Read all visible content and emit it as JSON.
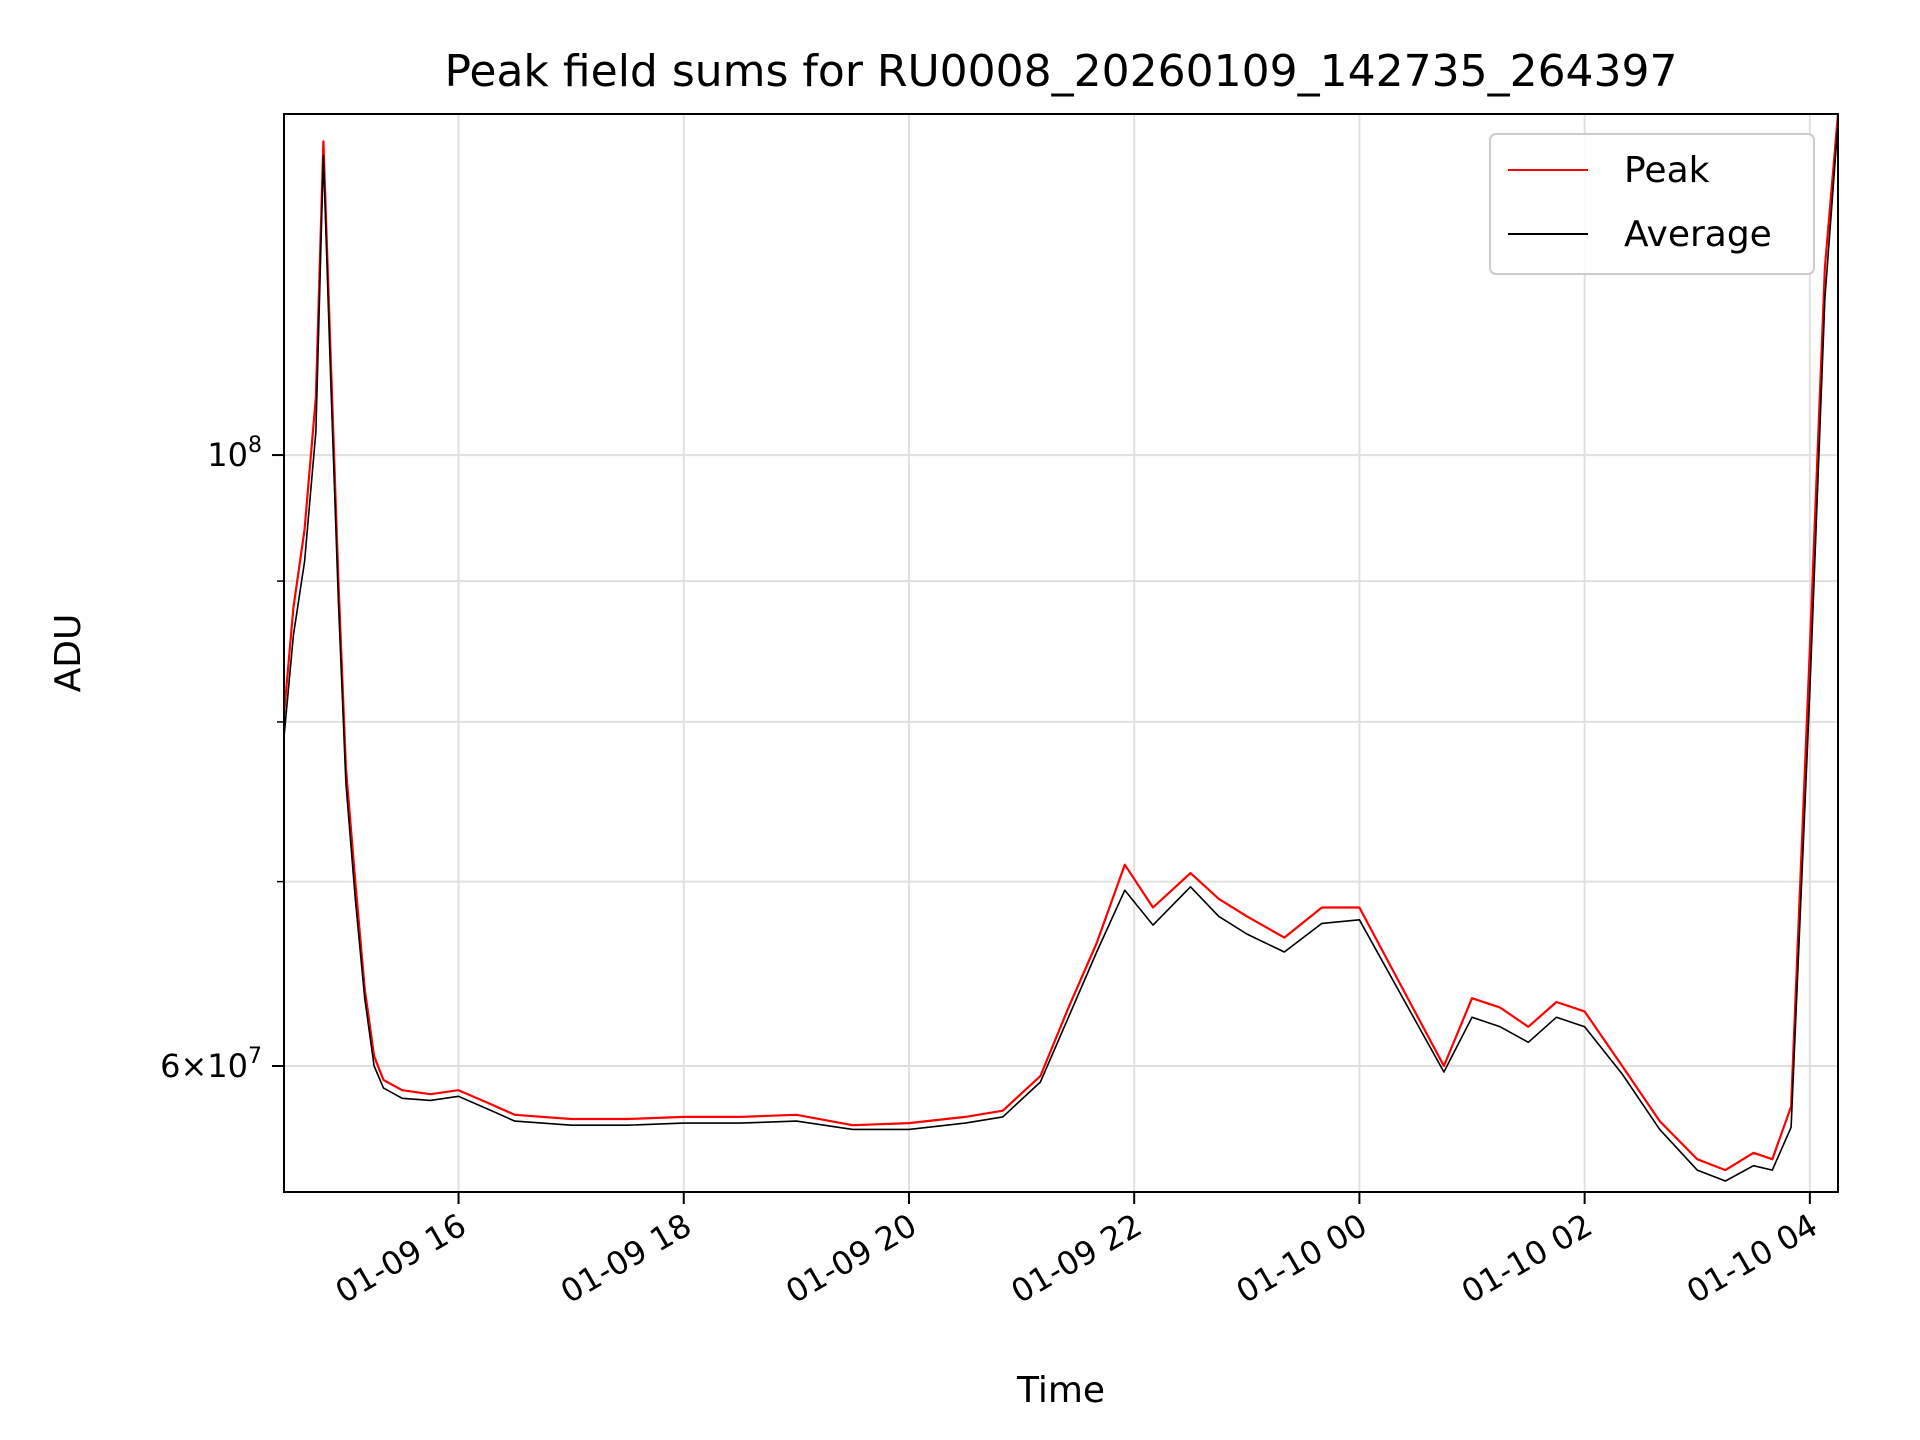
{
  "chart_data": {
    "type": "line",
    "title": "Peak field sums for RU0008_20260109_142735_264397",
    "xlabel": "Time",
    "ylabel": "ADU",
    "yscale": "log",
    "xlim": [
      "2026-01-09 14:27",
      "2026-01-10 04:15"
    ],
    "ylim": [
      54000000,
      133000000
    ],
    "x_ticks": [
      {
        "x": "2026-01-09 16:00",
        "label": "01-09 16"
      },
      {
        "x": "2026-01-09 18:00",
        "label": "01-09 18"
      },
      {
        "x": "2026-01-09 20:00",
        "label": "01-09 20"
      },
      {
        "x": "2026-01-09 22:00",
        "label": "01-09 22"
      },
      {
        "x": "2026-01-10 00:00",
        "label": "01-10 00"
      },
      {
        "x": "2026-01-10 02:00",
        "label": "01-10 02"
      },
      {
        "x": "2026-01-10 04:00",
        "label": "01-10 04"
      }
    ],
    "y_ticks": [
      {
        "value": 100000000,
        "base": "10",
        "exp": "8",
        "coef": ""
      },
      {
        "value": 60000000,
        "base": "10",
        "exp": "7",
        "coef": "6"
      }
    ],
    "y_minor_ticks": [
      70000000,
      80000000,
      90000000
    ],
    "grid": true,
    "legend_position": "top-right",
    "series": [
      {
        "name": "Peak",
        "color": "#ff0000",
        "x": [
          "2026-01-09 14:27",
          "2026-01-09 14:32",
          "2026-01-09 14:38",
          "2026-01-09 14:44",
          "2026-01-09 14:48",
          "2026-01-09 14:52",
          "2026-01-09 14:56",
          "2026-01-09 15:00",
          "2026-01-09 15:05",
          "2026-01-09 15:10",
          "2026-01-09 15:15",
          "2026-01-09 15:20",
          "2026-01-09 15:30",
          "2026-01-09 15:45",
          "2026-01-09 16:00",
          "2026-01-09 16:15",
          "2026-01-09 16:30",
          "2026-01-09 17:00",
          "2026-01-09 17:30",
          "2026-01-09 18:00",
          "2026-01-09 18:30",
          "2026-01-09 19:00",
          "2026-01-09 19:30",
          "2026-01-09 20:00",
          "2026-01-09 20:30",
          "2026-01-09 20:50",
          "2026-01-09 21:10",
          "2026-01-09 21:25",
          "2026-01-09 21:40",
          "2026-01-09 21:55",
          "2026-01-09 22:10",
          "2026-01-09 22:30",
          "2026-01-09 22:45",
          "2026-01-09 23:00",
          "2026-01-09 23:20",
          "2026-01-09 23:40",
          "2026-01-10 00:00",
          "2026-01-10 00:45",
          "2026-01-10 01:00",
          "2026-01-10 01:15",
          "2026-01-10 01:30",
          "2026-01-10 01:45",
          "2026-01-10 02:00",
          "2026-01-10 02:20",
          "2026-01-10 02:40",
          "2026-01-10 03:00",
          "2026-01-10 03:15",
          "2026-01-10 03:30",
          "2026-01-10 03:40",
          "2026-01-10 03:50",
          "2026-01-10 04:00",
          "2026-01-10 04:08",
          "2026-01-10 04:15"
        ],
        "values": [
          80500000,
          88000000,
          94000000,
          105000000,
          130000000,
          108000000,
          90000000,
          77000000,
          70000000,
          64000000,
          60500000,
          59300000,
          58800000,
          58600000,
          58800000,
          58200000,
          57600000,
          57400000,
          57400000,
          57500000,
          57500000,
          57600000,
          57100000,
          57200000,
          57500000,
          57800000,
          59500000,
          63000000,
          66500000,
          71000000,
          68500000,
          70500000,
          69000000,
          68000000,
          66800000,
          68500000,
          68500000,
          60000000,
          63500000,
          63000000,
          62000000,
          63300000,
          62800000,
          60000000,
          57300000,
          55500000,
          55000000,
          55800000,
          55500000,
          58000000,
          85000000,
          117000000,
          133000000
        ]
      },
      {
        "name": "Average",
        "color": "#000000",
        "x": [
          "2026-01-09 14:27",
          "2026-01-09 14:32",
          "2026-01-09 14:38",
          "2026-01-09 14:44",
          "2026-01-09 14:48",
          "2026-01-09 14:52",
          "2026-01-09 14:56",
          "2026-01-09 15:00",
          "2026-01-09 15:05",
          "2026-01-09 15:10",
          "2026-01-09 15:15",
          "2026-01-09 15:20",
          "2026-01-09 15:30",
          "2026-01-09 15:45",
          "2026-01-09 16:00",
          "2026-01-09 16:15",
          "2026-01-09 16:30",
          "2026-01-09 17:00",
          "2026-01-09 17:30",
          "2026-01-09 18:00",
          "2026-01-09 18:30",
          "2026-01-09 19:00",
          "2026-01-09 19:30",
          "2026-01-09 20:00",
          "2026-01-09 20:30",
          "2026-01-09 20:50",
          "2026-01-09 21:10",
          "2026-01-09 21:25",
          "2026-01-09 21:40",
          "2026-01-09 21:55",
          "2026-01-09 22:10",
          "2026-01-09 22:30",
          "2026-01-09 22:45",
          "2026-01-09 23:00",
          "2026-01-09 23:20",
          "2026-01-09 23:40",
          "2026-01-10 00:00",
          "2026-01-10 00:45",
          "2026-01-10 01:00",
          "2026-01-10 01:15",
          "2026-01-10 01:30",
          "2026-01-10 01:45",
          "2026-01-10 02:00",
          "2026-01-10 02:20",
          "2026-01-10 02:40",
          "2026-01-10 03:00",
          "2026-01-10 03:15",
          "2026-01-10 03:30",
          "2026-01-10 03:40",
          "2026-01-10 03:50",
          "2026-01-10 04:00",
          "2026-01-10 04:08",
          "2026-01-10 04:15"
        ],
        "values": [
          79000000,
          86000000,
          91500000,
          102000000,
          128500000,
          106000000,
          88500000,
          76000000,
          69000000,
          63500000,
          60000000,
          58900000,
          58400000,
          58300000,
          58500000,
          57900000,
          57300000,
          57100000,
          57100000,
          57200000,
          57200000,
          57300000,
          56900000,
          56900000,
          57200000,
          57500000,
          59200000,
          62500000,
          66000000,
          69500000,
          67500000,
          69700000,
          68000000,
          67000000,
          66000000,
          67600000,
          67800000,
          59700000,
          62500000,
          62000000,
          61200000,
          62500000,
          62000000,
          59600000,
          56900000,
          55000000,
          54500000,
          55200000,
          55000000,
          57000000,
          82000000,
          114000000,
          132000000
        ]
      }
    ]
  }
}
